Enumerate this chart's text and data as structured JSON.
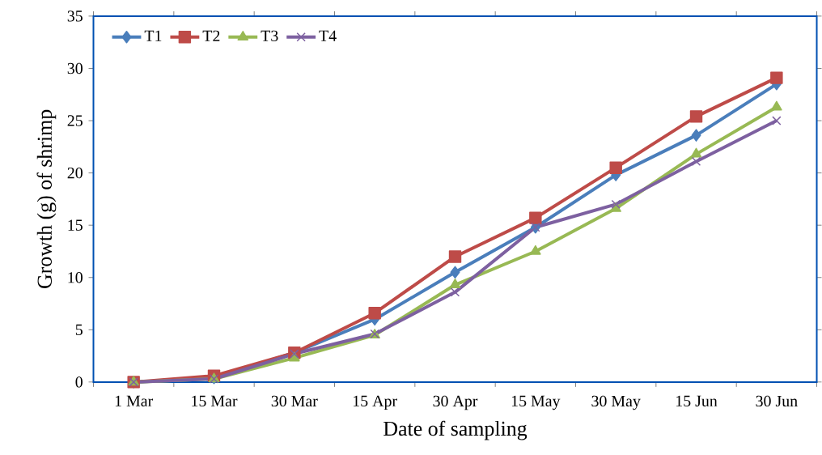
{
  "chart_data": {
    "type": "line",
    "xlabel": "Date of sampling",
    "ylabel": "Growth (g) of shrimp",
    "categories": [
      "1 Mar",
      "15 Mar",
      "30 Mar",
      "15 Apr",
      "30 Apr",
      "15 May",
      "30 May",
      "15 Jun",
      "30 Jun"
    ],
    "ylim": [
      0,
      35
    ],
    "yticks": [
      0,
      5,
      10,
      15,
      20,
      25,
      30,
      35
    ],
    "grid": false,
    "legend": "top left",
    "line_style": "solid",
    "series": [
      {
        "name": "T1",
        "color": "#4a7ebb",
        "marker": "diamond",
        "values": [
          0,
          0.4,
          2.8,
          6.0,
          10.5,
          14.8,
          19.8,
          23.6,
          28.5
        ]
      },
      {
        "name": "T2",
        "color": "#be4b48",
        "marker": "square",
        "values": [
          0,
          0.6,
          2.8,
          6.6,
          12.0,
          15.7,
          20.5,
          25.4,
          29.1
        ]
      },
      {
        "name": "T3",
        "color": "#98b954",
        "marker": "triangle",
        "values": [
          0,
          0.3,
          2.3,
          4.5,
          9.3,
          12.5,
          16.6,
          21.8,
          26.3
        ]
      },
      {
        "name": "T4",
        "color": "#7d60a0",
        "marker": "cross",
        "values": [
          0,
          0.3,
          2.7,
          4.6,
          8.6,
          14.8,
          17.0,
          21.1,
          25.0
        ]
      }
    ]
  }
}
